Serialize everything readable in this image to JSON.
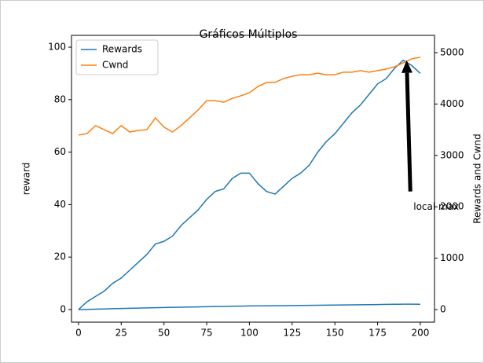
{
  "chart_data": {
    "type": "line",
    "title": "Gráficos Múltiplos",
    "ylabel": "reward",
    "y2label": "Rewards and Cwnd",
    "x": [
      0,
      5,
      10,
      15,
      20,
      25,
      30,
      35,
      40,
      45,
      50,
      55,
      60,
      65,
      70,
      75,
      80,
      85,
      90,
      95,
      100,
      105,
      110,
      115,
      120,
      125,
      130,
      135,
      140,
      145,
      150,
      155,
      160,
      165,
      170,
      175,
      180,
      185,
      190,
      195,
      200
    ],
    "series": [
      {
        "name": "Rewards",
        "color": "#1f77b4",
        "axis": "y",
        "values": [
          0,
          3,
          5,
          7,
          10,
          12,
          15,
          18,
          21,
          25,
          26,
          28,
          32,
          35,
          38,
          42,
          45,
          46,
          50,
          52,
          52,
          48,
          45,
          44,
          47,
          50,
          52,
          55,
          60,
          64,
          67,
          71,
          75,
          78,
          82,
          86,
          88,
          92,
          95,
          93,
          90
        ]
      },
      {
        "name": "Cwnd",
        "color": "#ff7f0e",
        "axis": "y2",
        "values": [
          3395,
          3425,
          3580,
          3500,
          3425,
          3580,
          3455,
          3485,
          3500,
          3730,
          3550,
          3455,
          3580,
          3730,
          3885,
          4065,
          4065,
          4035,
          4110,
          4160,
          4220,
          4340,
          4420,
          4420,
          4495,
          4540,
          4570,
          4570,
          4600,
          4570,
          4570,
          4620,
          4620,
          4650,
          4620,
          4650,
          4680,
          4725,
          4800,
          4880,
          4910
        ]
      },
      {
        "color": "#1f77b4",
        "axis": "y2",
        "values": [
          0,
          4,
          8,
          12,
          16,
          20,
          24,
          28,
          32,
          36,
          40,
          43,
          46,
          49,
          52,
          55,
          58,
          61,
          64,
          67,
          70,
          72,
          72,
          74,
          76,
          78,
          80,
          82,
          84,
          86,
          88,
          90,
          92,
          94,
          96,
          98,
          100,
          102,
          104,
          104,
          102
        ]
      }
    ],
    "xlim": [
      -4.1,
      208.3
    ],
    "xticks": [
      0,
      25,
      50,
      75,
      100,
      125,
      150,
      175,
      200
    ],
    "ylim": [
      -4.8,
      104.5
    ],
    "yticks": [
      0,
      20,
      40,
      60,
      80,
      100
    ],
    "y2lim": [
      -245,
      5336
    ],
    "y2ticks": [
      0,
      1000,
      2000,
      3000,
      4000,
      5000
    ],
    "legend": "upper left",
    "annotation": {
      "text": "local max",
      "x": 192,
      "y": 95,
      "text_x": 196,
      "text_y": 39
    }
  }
}
